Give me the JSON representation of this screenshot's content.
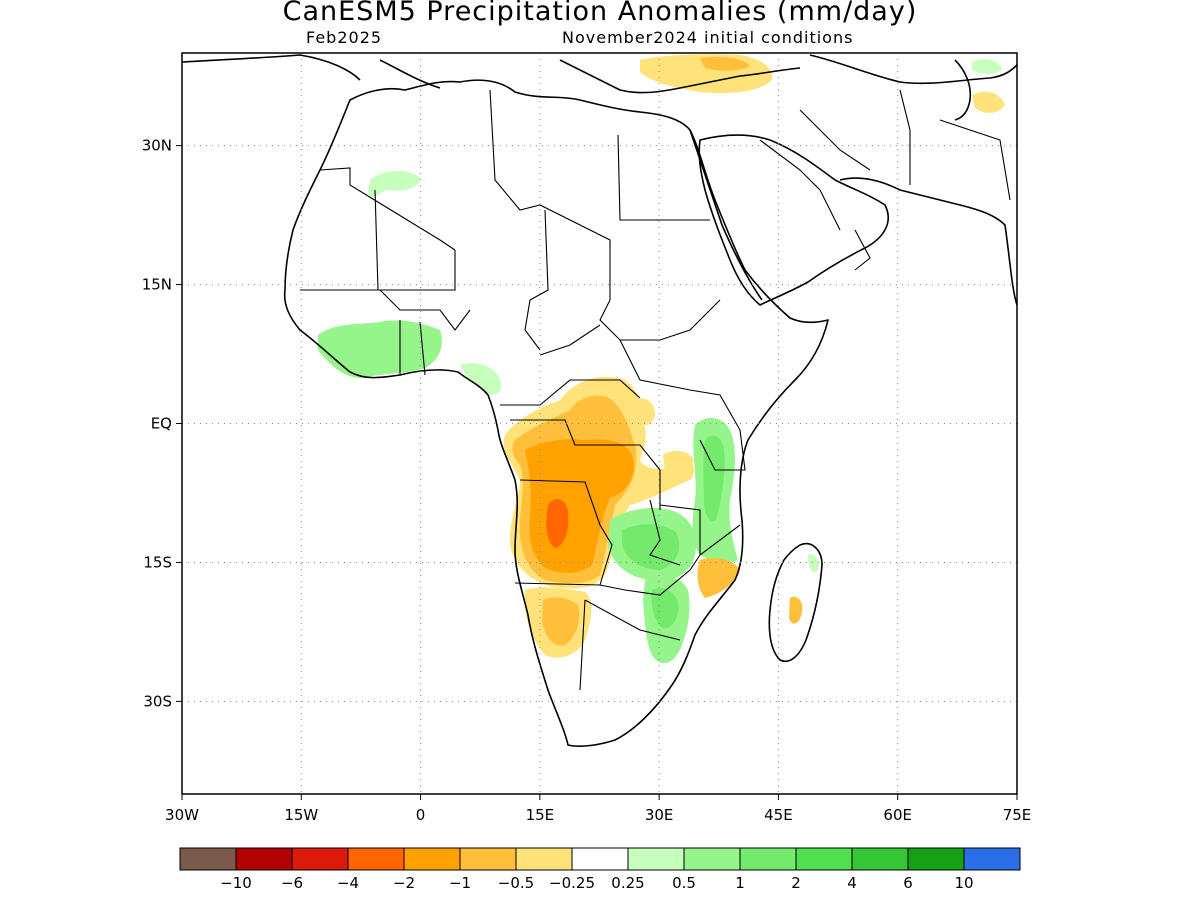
{
  "title": "CanESM5 Precipitation Anomalies (mm/day)",
  "valid_month": "Feb2025",
  "init_conditions": "November2024 initial conditions",
  "map": {
    "lon_range": [
      -30,
      75
    ],
    "lat_range": [
      -40,
      40
    ],
    "lat_ticks": [
      {
        "value": 30,
        "label": "30N"
      },
      {
        "value": 15,
        "label": "15N"
      },
      {
        "value": 0,
        "label": "EQ"
      },
      {
        "value": -15,
        "label": "15S"
      },
      {
        "value": -30,
        "label": "30S"
      }
    ],
    "lon_ticks": [
      {
        "value": -30,
        "label": "30W"
      },
      {
        "value": -15,
        "label": "15W"
      },
      {
        "value": 0,
        "label": "0"
      },
      {
        "value": 15,
        "label": "15E"
      },
      {
        "value": 30,
        "label": "30E"
      },
      {
        "value": 45,
        "label": "45E"
      },
      {
        "value": 60,
        "label": "60E"
      },
      {
        "value": 75,
        "label": "75E"
      }
    ],
    "grid": true
  },
  "colorbar": {
    "colors": [
      "#7b5a4b",
      "#b30000",
      "#dc1a0a",
      "#ff6600",
      "#ffa200",
      "#ffbf3a",
      "#ffe37a",
      "#ffffff",
      "#c7ffbd",
      "#95f58a",
      "#73ea6b",
      "#4fe04f",
      "#35c635",
      "#14a214",
      "#2a6fe8"
    ],
    "labels": [
      "−10",
      "−6",
      "−4",
      "−2",
      "−1",
      "−0.5",
      "−0.25",
      "0.25",
      "0.5",
      "1",
      "2",
      "4",
      "6",
      "10"
    ]
  },
  "anomaly_regions": [
    {
      "name": "central-africa-dry",
      "category": "-0.5"
    },
    {
      "name": "angola-dry-core",
      "category": "-2"
    },
    {
      "name": "west-africa-wet",
      "category": "0.5"
    },
    {
      "name": "east-africa-wet",
      "category": "0.5"
    },
    {
      "name": "zambia-wet",
      "category": "1"
    },
    {
      "name": "namibia-dry",
      "category": "-0.5"
    },
    {
      "name": "mozambique-dry",
      "category": "-1"
    },
    {
      "name": "madagascar-dry",
      "category": "-1"
    },
    {
      "name": "mediterranean-dry",
      "category": "-0.5"
    }
  ]
}
